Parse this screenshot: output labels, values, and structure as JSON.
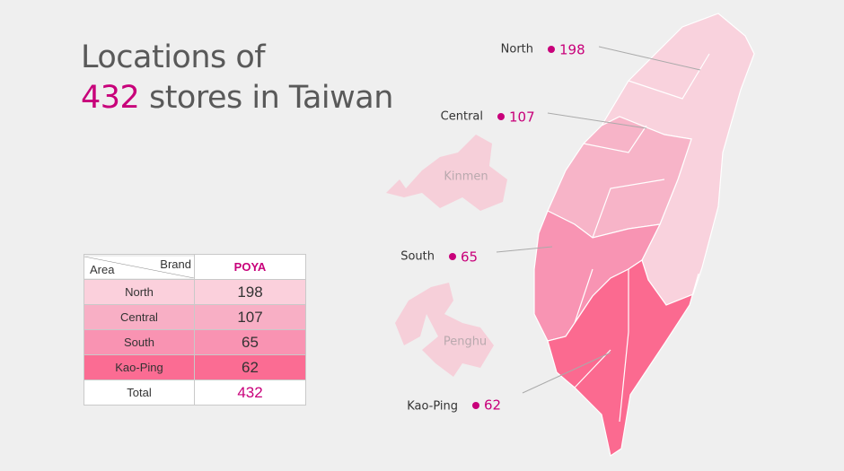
{
  "title": {
    "line1": "Locations of",
    "count": 432,
    "line2": "stores in Taiwan"
  },
  "table": {
    "corner_row": "Area",
    "corner_col": "Brand",
    "brand": "POYA",
    "rows": [
      [
        "North",
        198
      ],
      [
        "Central",
        107
      ],
      [
        "South",
        65
      ],
      [
        "Kao-Ping",
        62
      ]
    ],
    "total": [
      "Total",
      432
    ]
  },
  "map": {
    "callouts": [
      {
        "area": "North",
        "count": 198
      },
      {
        "area": "Central",
        "count": 107
      },
      {
        "area": "South",
        "count": 65
      },
      {
        "area": "Kao-Ping",
        "count": 62
      }
    ],
    "islands": [
      "Kinmen",
      "Penghu"
    ]
  }
}
